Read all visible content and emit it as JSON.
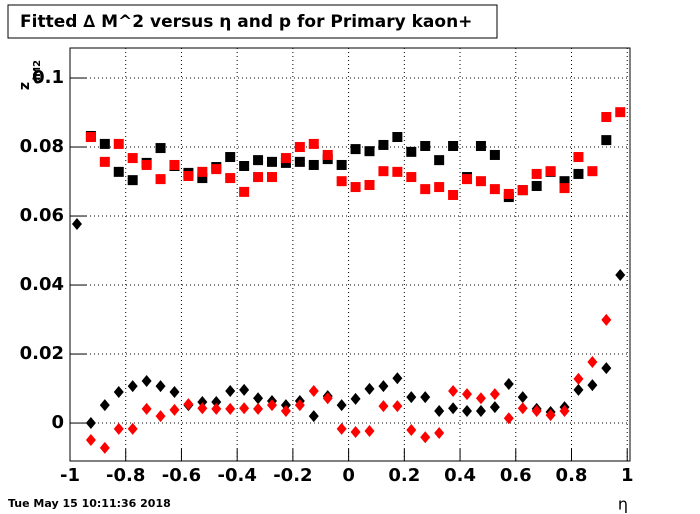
{
  "chart_data": {
    "type": "scatter",
    "title": "Fitted ∆ M^2 versus η and p for Primary kaon+",
    "x_label": "η",
    "y_label": "z",
    "y_label_sub": "dM2",
    "timestamp": "Tue May 15 10:11:36 2018",
    "xlim": [
      -1,
      1.01
    ],
    "ylim": [
      -0.011,
      0.1087
    ],
    "xticks": [
      -1,
      -0.8,
      -0.6,
      -0.4,
      -0.2,
      0,
      0.2,
      0.4,
      0.6,
      0.8,
      1
    ],
    "yticks": [
      0,
      0.02,
      0.04,
      0.06,
      0.08,
      0.1
    ],
    "grid": true,
    "x": [
      -0.975,
      -0.925,
      -0.875,
      -0.825,
      -0.775,
      -0.725,
      -0.675,
      -0.625,
      -0.575,
      -0.525,
      -0.475,
      -0.425,
      -0.375,
      -0.325,
      -0.275,
      -0.225,
      -0.175,
      -0.125,
      -0.075,
      -0.025,
      0.025,
      0.075,
      0.125,
      0.175,
      0.225,
      0.275,
      0.325,
      0.375,
      0.425,
      0.475,
      0.525,
      0.575,
      0.625,
      0.675,
      0.725,
      0.775,
      0.825,
      0.875,
      0.925,
      0.975
    ],
    "series": [
      {
        "color": "#000000",
        "marker": "square",
        "values": [
          null,
          0.0832,
          0.0809,
          0.0728,
          0.0704,
          0.0754,
          0.0797,
          0.0745,
          0.0725,
          0.071,
          0.0742,
          0.0771,
          0.0745,
          0.0762,
          0.0757,
          0.0754,
          0.0757,
          0.0748,
          0.0765,
          0.0748,
          0.0794,
          0.0788,
          0.0806,
          0.0829,
          0.0786,
          0.0803,
          0.0762,
          0.0803,
          0.0713,
          0.0803,
          0.0777,
          0.0655,
          0.0675,
          0.0687,
          0.0728,
          0.0701,
          0.0722,
          null,
          0.082,
          null
        ]
      },
      {
        "color": "#ff0000",
        "marker": "square",
        "values": [
          null,
          0.0829,
          0.0757,
          0.0809,
          0.0768,
          0.0748,
          0.0707,
          0.0748,
          0.0716,
          0.0728,
          0.0736,
          0.071,
          0.067,
          0.0713,
          0.0713,
          0.0768,
          0.08,
          0.0809,
          0.0777,
          0.0701,
          0.0684,
          0.069,
          0.073,
          0.0728,
          0.0713,
          0.0678,
          0.0684,
          0.0661,
          0.0707,
          0.0701,
          0.0678,
          0.0664,
          0.0675,
          0.0722,
          0.073,
          0.0681,
          0.0771,
          0.073,
          0.0887,
          0.0901
        ]
      },
      {
        "color": "#000000",
        "marker": "diamond",
        "values": [
          0.0577,
          0,
          0.0052,
          0.009,
          0.0107,
          0.0122,
          0.0107,
          0.009,
          0.0052,
          0.0061,
          0.0061,
          0.0093,
          0.0096,
          0.0072,
          0.0064,
          0.0052,
          0.0064,
          0.002,
          0.0078,
          0.0052,
          0.007,
          0.0099,
          0.0107,
          0.013,
          0.0075,
          0.0075,
          0.0035,
          0.0043,
          0.0035,
          0.0035,
          0.0046,
          0.0113,
          0.0075,
          0.0041,
          0.0032,
          0.0046,
          0.0096,
          0.011,
          0.0159,
          0.0429
        ]
      },
      {
        "color": "#ff0000",
        "marker": "diamond",
        "values": [
          null,
          -0.0049,
          -0.0072,
          -0.0017,
          -0.0017,
          0.0041,
          0.002,
          0.0038,
          0.0055,
          0.0043,
          0.0041,
          0.0041,
          0.0043,
          0.0041,
          0.0052,
          0.0035,
          0.0052,
          0.0093,
          0.0072,
          -0.0017,
          -0.0026,
          -0.0023,
          0.0049,
          0.0049,
          -0.002,
          -0.0041,
          -0.0029,
          0.0093,
          0.0084,
          0.0072,
          0.0084,
          0.0014,
          0.0043,
          0.0035,
          0.0023,
          0.0035,
          0.0128,
          0.0177,
          0.0299,
          null
        ]
      }
    ]
  }
}
